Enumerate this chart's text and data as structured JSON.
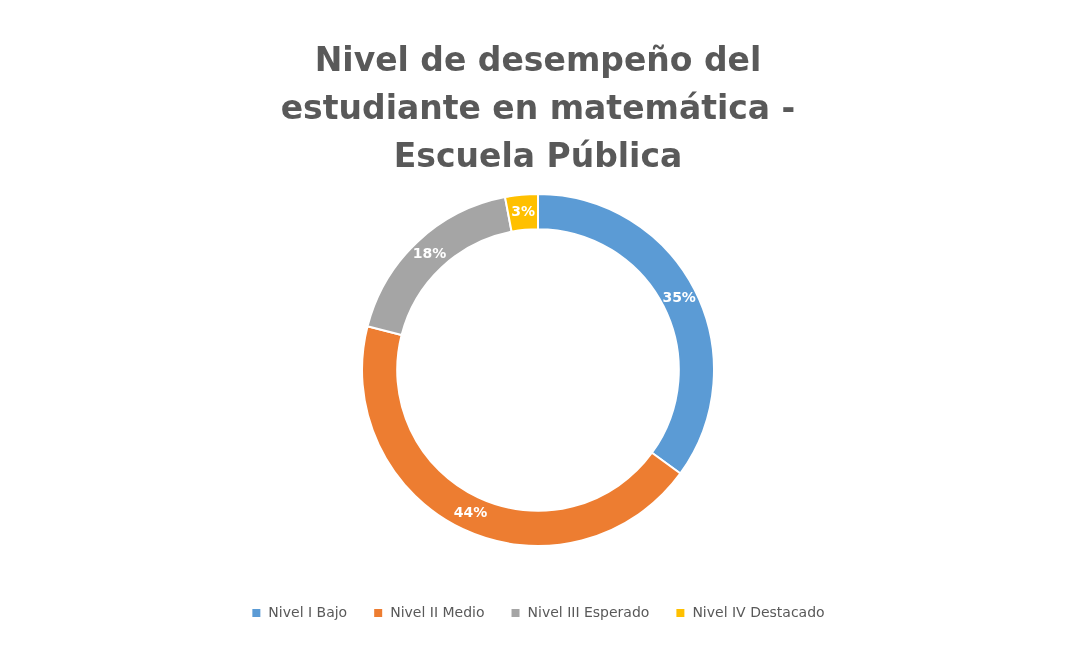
{
  "chart_data": {
    "type": "donut",
    "title": "Nivel de desempeño del estudiante en matemática - Escuela Pública",
    "categories": [
      "Nivel I Bajo",
      "Nivel II Medio",
      "Nivel III Esperado",
      "Nivel IV Destacado"
    ],
    "values": [
      35,
      44,
      18,
      3
    ],
    "colors": [
      "#5b9bd5",
      "#ed7d31",
      "#a5a5a5",
      "#ffc000"
    ],
    "value_labels": [
      "35%",
      "44%",
      "18%",
      "3%"
    ],
    "legend": "bottom"
  }
}
